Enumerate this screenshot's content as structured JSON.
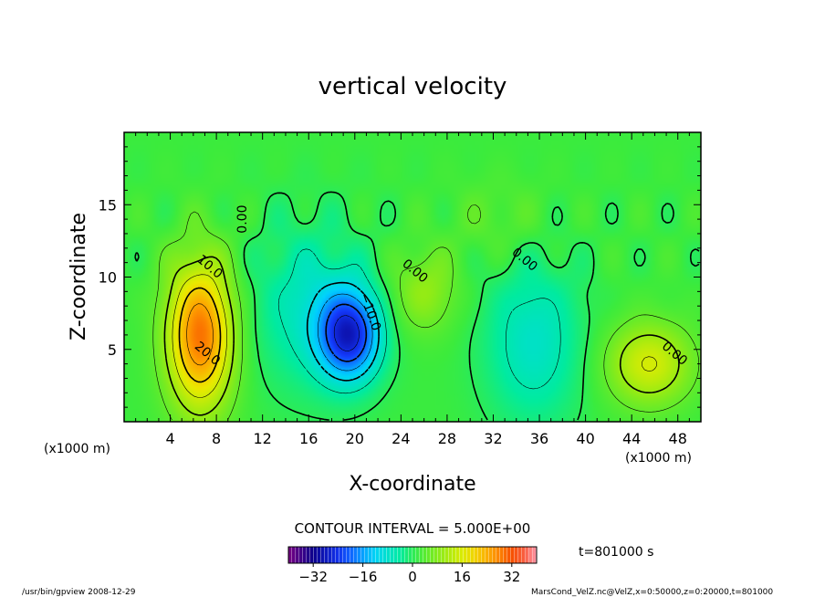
{
  "chart_data": {
    "type": "heatmap",
    "title": "vertical velocity",
    "xlabel": "X-coordinate",
    "ylabel": "Z-coordinate",
    "x_unit": "(x1000 m)",
    "y_unit": "(x1000 m)",
    "xlim": [
      0,
      50
    ],
    "ylim": [
      0,
      20
    ],
    "xticks": [
      4,
      8,
      12,
      16,
      20,
      24,
      28,
      32,
      36,
      40,
      44,
      48
    ],
    "yticks": [
      5,
      10,
      15
    ],
    "contour_interval": "CONTOUR INTERVAL = 5.000E+00",
    "time_label": "t=801000 s",
    "colorbar": {
      "range": [
        -40,
        40
      ],
      "ticks": [
        -32,
        -16,
        0,
        16,
        32
      ],
      "tick_labels": [
        "−32",
        "−16",
        "0",
        "16",
        "32"
      ]
    },
    "contour_labels": [
      {
        "text": "10.0",
        "x": 7.2,
        "z": 10.5
      },
      {
        "text": "20.0",
        "x": 7.0,
        "z": 4.5
      },
      {
        "text": "0.00",
        "x": 10.6,
        "z": 14.0
      },
      {
        "text": "0.00",
        "x": 25.0,
        "z": 10.2
      },
      {
        "text": "0.00",
        "x": 34.5,
        "z": 11.0
      },
      {
        "text": "0.00",
        "x": 47.5,
        "z": 4.5
      },
      {
        "text": "−10.0",
        "x": 21.0,
        "z": 7.5
      }
    ],
    "extrema": [
      {
        "x": 6.6,
        "z": 6.0,
        "value": 28,
        "sx": 2.0,
        "sz": 3.6
      },
      {
        "x": 19.5,
        "z": 6.0,
        "value": -26,
        "sx": 1.9,
        "sz": 2.2
      },
      {
        "x": 16.0,
        "z": 8.0,
        "value": -8,
        "sx": 3.5,
        "sz": 4.0
      },
      {
        "x": 35.5,
        "z": 5.5,
        "value": -9,
        "sx": 3.0,
        "sz": 4.0
      },
      {
        "x": 45.5,
        "z": 4.0,
        "value": 14,
        "sx": 2.6,
        "sz": 2.0
      },
      {
        "x": 26.0,
        "z": 9.0,
        "value": 8,
        "sx": 2.0,
        "sz": 2.0
      },
      {
        "x": 32.5,
        "z": 14.0,
        "value": 3,
        "sx": 3.0,
        "sz": 2.0
      }
    ]
  },
  "footer": {
    "left": "/usr/bin/gpview  2008-12-29",
    "right": "MarsCond_VelZ.nc@VelZ,x=0:50000,z=0:20000,t=801000"
  },
  "colors": {
    "axis": "#000000",
    "background": "#ffffff"
  }
}
